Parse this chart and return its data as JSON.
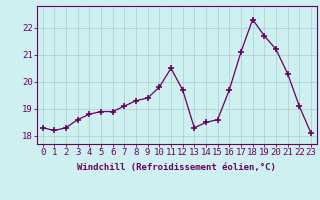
{
  "x": [
    0,
    1,
    2,
    3,
    4,
    5,
    6,
    7,
    8,
    9,
    10,
    11,
    12,
    13,
    14,
    15,
    16,
    17,
    18,
    19,
    20,
    21,
    22,
    23
  ],
  "y": [
    18.3,
    18.2,
    18.3,
    18.6,
    18.8,
    18.9,
    18.9,
    19.1,
    19.3,
    19.4,
    19.8,
    20.5,
    19.7,
    18.3,
    18.5,
    18.6,
    19.7,
    21.1,
    22.3,
    21.7,
    21.2,
    20.3,
    19.1,
    18.1
  ],
  "line_color": "#660066",
  "marker": "+",
  "marker_size": 4,
  "marker_linewidth": 1.2,
  "background_color": "#cff0f0",
  "grid_color": "#aacccc",
  "xlabel": "Windchill (Refroidissement éolien,°C)",
  "xlabel_fontsize": 6.5,
  "ylabel_ticks": [
    18,
    19,
    20,
    21,
    22
  ],
  "ylim": [
    17.7,
    22.8
  ],
  "xlim": [
    -0.5,
    23.5
  ],
  "tick_fontsize": 6.5,
  "tick_color": "#660066",
  "spine_color": "#660066",
  "linewidth": 0.9
}
